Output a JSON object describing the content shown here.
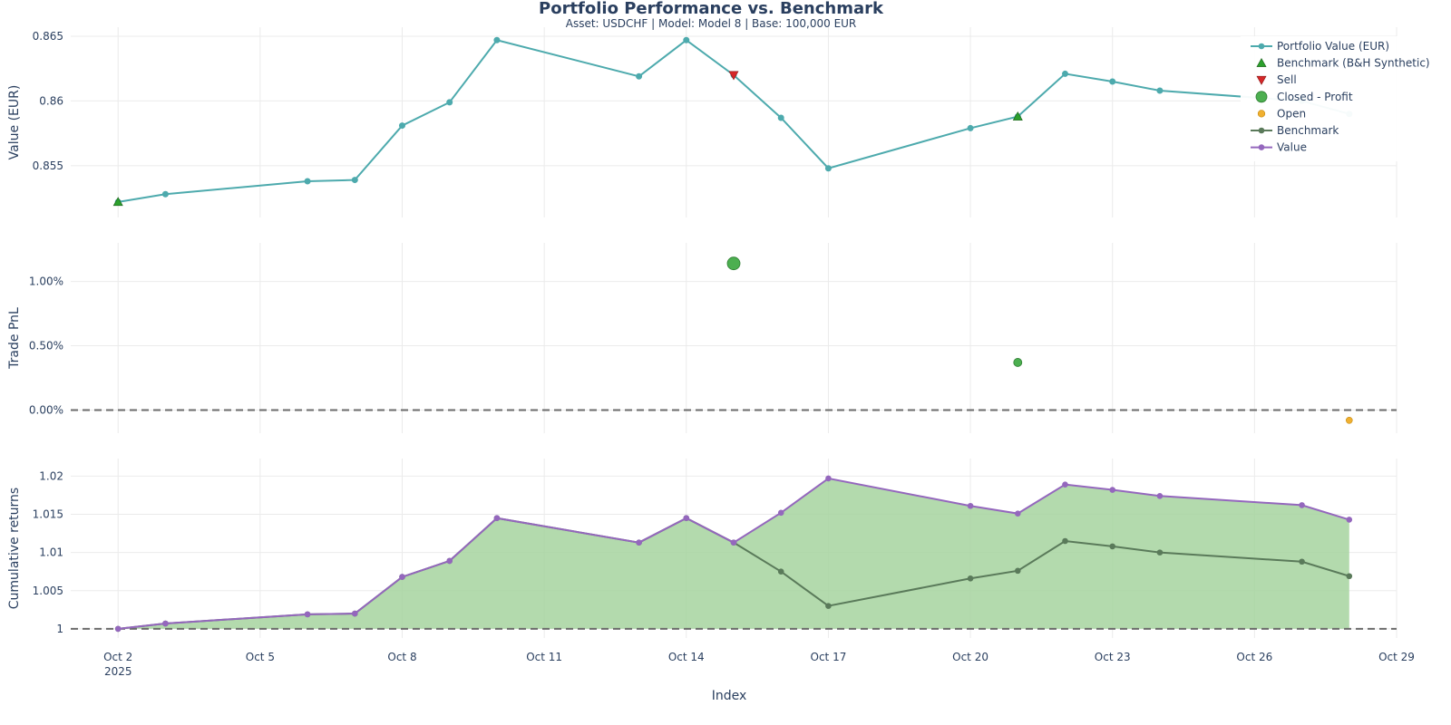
{
  "chart_data": {
    "type": "line",
    "title": "Portfolio Performance vs. Benchmark",
    "subtitle": "Asset: USDCHF | Model: Model 8 | Base: 100,000 EUR",
    "xlabel": "Index",
    "x_ticks": [
      "2025-10-02",
      "2025-10-05",
      "2025-10-08",
      "2025-10-11",
      "2025-10-14",
      "2025-10-17",
      "2025-10-20",
      "2025-10-23",
      "2025-10-26",
      "2025-10-29"
    ],
    "x_tick_labels": [
      "Oct 2",
      "Oct 5",
      "Oct 8",
      "Oct 11",
      "Oct 14",
      "Oct 17",
      "Oct 20",
      "Oct 23",
      "Oct 26",
      "Oct 29"
    ],
    "x_tick_year": "2025",
    "xlim": [
      "2025-10-01",
      "2025-10-29"
    ],
    "legend_position": "top-right",
    "grid": true,
    "colors": {
      "portfolio": "#4daaad",
      "benchmark_marker": "#2ca02c",
      "sell": "#d62728",
      "closed_profit": "#4caf50",
      "open": "#f0b030",
      "benchmark": "#5a7a5a",
      "value": "#9467bd",
      "fill": "#a6d49f",
      "grid": "#ebebeb",
      "zero_line": "#6b6b6b"
    },
    "legend": [
      {
        "name": "Portfolio Value (EUR)",
        "symbol": "line-circle",
        "color": "#4daaad"
      },
      {
        "name": "Benchmark (B&H Synthetic)",
        "symbol": "triangle-up",
        "color": "#2ca02c"
      },
      {
        "name": "Sell",
        "symbol": "triangle-down",
        "color": "#d62728"
      },
      {
        "name": "Closed - Profit",
        "symbol": "circle-large",
        "color": "#4caf50"
      },
      {
        "name": "Open",
        "symbol": "circle-small",
        "color": "#f0b030"
      },
      {
        "name": "Benchmark",
        "symbol": "line-circle",
        "color": "#5a7a5a"
      },
      {
        "name": "Value",
        "symbol": "line-circle",
        "color": "#9467bd"
      }
    ],
    "panels": [
      {
        "ylabel": "Value (EUR)",
        "ylim": [
          0.851,
          0.8657
        ],
        "y_ticks": [
          0.855,
          0.86,
          0.865
        ],
        "y_tick_labels": [
          "0.855",
          "0.86",
          "0.865"
        ],
        "series": [
          {
            "name": "Portfolio Value (EUR)",
            "x": [
              "2025-10-02",
              "2025-10-03",
              "2025-10-06",
              "2025-10-07",
              "2025-10-08",
              "2025-10-09",
              "2025-10-10",
              "2025-10-13",
              "2025-10-14",
              "2025-10-15",
              "2025-10-16",
              "2025-10-17",
              "2025-10-20",
              "2025-10-21",
              "2025-10-22",
              "2025-10-23",
              "2025-10-24",
              "2025-10-27",
              "2025-10-28"
            ],
            "y": [
              0.8522,
              0.8528,
              0.8538,
              0.8539,
              0.8581,
              0.8599,
              0.8647,
              0.8619,
              0.8647,
              0.862,
              0.8587,
              0.8548,
              0.8579,
              0.8588,
              0.8621,
              0.8615,
              0.8608,
              0.86,
              0.859
            ]
          }
        ],
        "markers": [
          {
            "name": "Benchmark (B&H Synthetic)",
            "x": [
              "2025-10-02",
              "2025-10-21"
            ],
            "y": [
              0.8522,
              0.8588
            ]
          },
          {
            "name": "Sell",
            "x": [
              "2025-10-15"
            ],
            "y": [
              0.862
            ]
          }
        ]
      },
      {
        "ylabel": "Trade PnL",
        "ylim": [
          -0.0018,
          0.013
        ],
        "y_ticks": [
          0,
          0.005,
          0.01
        ],
        "y_tick_labels": [
          "0.00%",
          "0.50%",
          "1.00%"
        ],
        "zero_line": 0,
        "points": [
          {
            "name": "Closed - Profit",
            "x": "2025-10-15",
            "y": 0.0114
          },
          {
            "name": "Closed - Profit",
            "x": "2025-10-21",
            "y": 0.0037
          },
          {
            "name": "Open",
            "x": "2025-10-28",
            "y": -0.0008
          }
        ]
      },
      {
        "ylabel": "Cumulative returns",
        "ylim": [
          0.9988,
          1.0223
        ],
        "y_ticks": [
          1,
          1.005,
          1.01,
          1.015,
          1.02
        ],
        "y_tick_labels": [
          "1",
          "1.005",
          "1.01",
          "1.015",
          "1.02"
        ],
        "zero_line": 1,
        "x": [
          "2025-10-02",
          "2025-10-03",
          "2025-10-06",
          "2025-10-07",
          "2025-10-08",
          "2025-10-09",
          "2025-10-10",
          "2025-10-13",
          "2025-10-14",
          "2025-10-15",
          "2025-10-16",
          "2025-10-17",
          "2025-10-20",
          "2025-10-21",
          "2025-10-22",
          "2025-10-23",
          "2025-10-24",
          "2025-10-27",
          "2025-10-28"
        ],
        "series": [
          {
            "name": "Benchmark",
            "y": [
              1.0,
              1.0007,
              1.0019,
              1.002,
              1.0068,
              1.0089,
              1.0145,
              1.0113,
              1.0145,
              1.0113,
              1.0075,
              1.003,
              1.0066,
              1.0076,
              1.0115,
              1.0108,
              1.01,
              1.0088,
              1.0069
            ]
          },
          {
            "name": "Value",
            "y": [
              1.0,
              1.0007,
              1.0019,
              1.002,
              1.0068,
              1.0089,
              1.0145,
              1.0113,
              1.0145,
              1.0113,
              1.0152,
              1.0197,
              1.0161,
              1.0151,
              1.0189,
              1.0182,
              1.0174,
              1.0162,
              1.0143
            ]
          }
        ]
      }
    ]
  }
}
